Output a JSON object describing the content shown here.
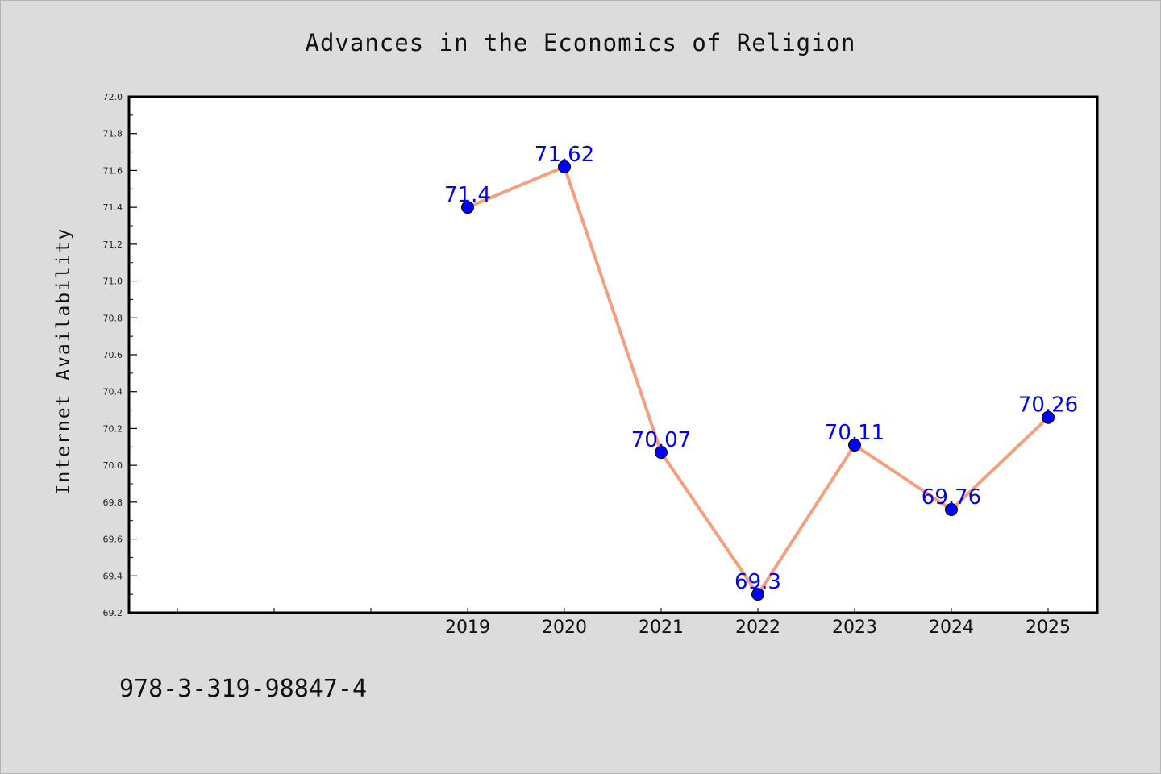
{
  "chart_data": {
    "type": "line",
    "title": "Advances in the Economics of Religion",
    "ylabel": "Internet Availability",
    "xlabel": "",
    "x": [
      "2019",
      "2020",
      "2021",
      "2022",
      "2023",
      "2024",
      "2025"
    ],
    "x_slots": 10,
    "x_first_labeled_slot": 3,
    "series": [
      {
        "values": [
          71.4,
          71.62,
          70.07,
          69.3,
          70.11,
          69.76,
          70.26
        ],
        "line_color": "#f4a07e",
        "marker_color": "#0000ff"
      }
    ],
    "data_labels": [
      "71.4",
      "71.62",
      "70.07",
      "69.3",
      "70.11",
      "69.76",
      "70.26"
    ],
    "ylim": [
      69.2,
      72.0
    ],
    "yticks": [
      "69.2",
      "69.4",
      "69.6",
      "69.8",
      "70.0",
      "70.2",
      "70.4",
      "70.6",
      "70.8",
      "71.0",
      "71.2",
      "71.4",
      "71.6",
      "71.8",
      "72.0"
    ],
    "grid": false,
    "legend": "none",
    "label_color": "#0000ff"
  },
  "footnote": "978-3-319-98847-4"
}
